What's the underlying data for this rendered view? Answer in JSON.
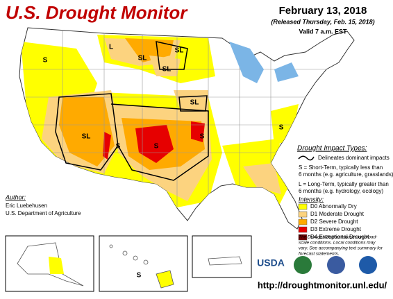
{
  "header": {
    "title": "U.S. Drought Monitor",
    "date": "February 13, 2018",
    "released": "(Released Thursday, Feb. 15, 2018)",
    "valid": "Valid 7 a.m. EST"
  },
  "impact": {
    "heading": "Drought Impact Types:",
    "delineates": "Delineates dominant impacts",
    "short_term": [
      "S = Short-Term, typically less than",
      "6 months (e.g. agriculture, grasslands)"
    ],
    "long_term": [
      "L = Long-Term, typically greater than",
      "6 months (e.g. hydrology, ecology)"
    ]
  },
  "intensity": {
    "heading": "Intensity:",
    "levels": [
      {
        "label": "D0 Abnormally Dry",
        "color": "#ffff00"
      },
      {
        "label": "D1 Moderate Drought",
        "color": "#fcd37f"
      },
      {
        "label": "D2 Severe Drought",
        "color": "#ffaa00"
      },
      {
        "label": "D3 Extreme Drought",
        "color": "#e60000"
      },
      {
        "label": "D4 Exceptional Drought",
        "color": "#730000"
      }
    ]
  },
  "author": {
    "heading": "Author:",
    "name": "Eric Luebehusen",
    "org": "U.S. Department of Agriculture"
  },
  "note": [
    "The Drought Monitor focuses on broad-",
    "scale conditions. Local conditions may",
    "vary. See accompanying text summary for",
    "forecast statements."
  ],
  "logo": "USDA",
  "url": "http://droughtmonitor.unl.edu/",
  "map_labels": [
    "S",
    "L",
    "SL",
    "SL",
    "SL",
    "SL",
    "S",
    "SL",
    "S",
    "S",
    "S",
    "S"
  ]
}
